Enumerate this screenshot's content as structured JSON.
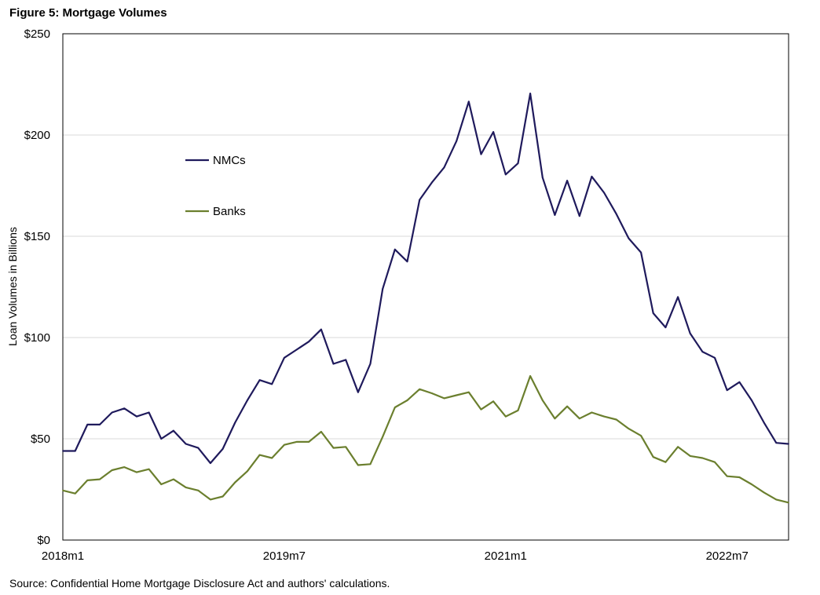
{
  "figure": {
    "title": "Figure 5: Mortgage Volumes",
    "source": "Source: Confidential Home Mortgage Disclosure Act and authors' calculations."
  },
  "chart_data": {
    "type": "line",
    "title": "Figure 5: Mortgage Volumes",
    "xlabel": "",
    "ylabel": "Loan Volumes in Billions",
    "ylim": [
      0,
      250
    ],
    "y_ticks": [
      0,
      50,
      100,
      150,
      200,
      250
    ],
    "y_tick_labels": [
      "$0",
      "$50",
      "$100",
      "$150",
      "$200",
      "$250"
    ],
    "x_tick_labels": [
      {
        "label": "2018m1",
        "index": 0
      },
      {
        "label": "2019m7",
        "index": 18
      },
      {
        "label": "2021m1",
        "index": 36
      },
      {
        "label": "2022m7",
        "index": 54
      }
    ],
    "x_count": 60,
    "grid": "horizontal",
    "legend_position": "upper-left inside plot",
    "series": [
      {
        "name": "NMCs",
        "color": "#1f1a5c",
        "values": [
          44,
          44,
          57,
          57,
          63,
          65,
          61,
          63,
          50,
          54,
          47.5,
          45.5,
          38,
          45,
          58,
          69,
          79,
          77,
          90,
          94,
          98,
          104,
          87,
          89,
          73,
          87,
          124,
          143.5,
          137.5,
          168,
          176.5,
          184,
          197,
          216.5,
          190.5,
          201.5,
          180.5,
          186,
          220.5,
          179,
          160.5,
          177.5,
          160,
          179.5,
          171.5,
          161,
          149,
          142,
          112,
          105,
          120,
          102,
          93,
          90,
          74,
          78,
          69,
          58,
          48,
          47.5
        ]
      },
      {
        "name": "Banks",
        "color": "#6b7f2e",
        "values": [
          24.5,
          23,
          29.5,
          30,
          34.5,
          36,
          33.5,
          35,
          27.5,
          30,
          26,
          24.5,
          20,
          21.5,
          28.5,
          34,
          42,
          40.5,
          47,
          48.5,
          48.5,
          53.5,
          45.5,
          46,
          37,
          37.5,
          51,
          65.5,
          69,
          74.5,
          72.5,
          70,
          71.5,
          73,
          64.5,
          68.5,
          61,
          64,
          81,
          69,
          60,
          66,
          60,
          63,
          61,
          59.5,
          55,
          51.5,
          41,
          38.5,
          46,
          41.5,
          40.5,
          38.5,
          31.5,
          31,
          27.5,
          23.5,
          20,
          18.5
        ]
      }
    ]
  }
}
